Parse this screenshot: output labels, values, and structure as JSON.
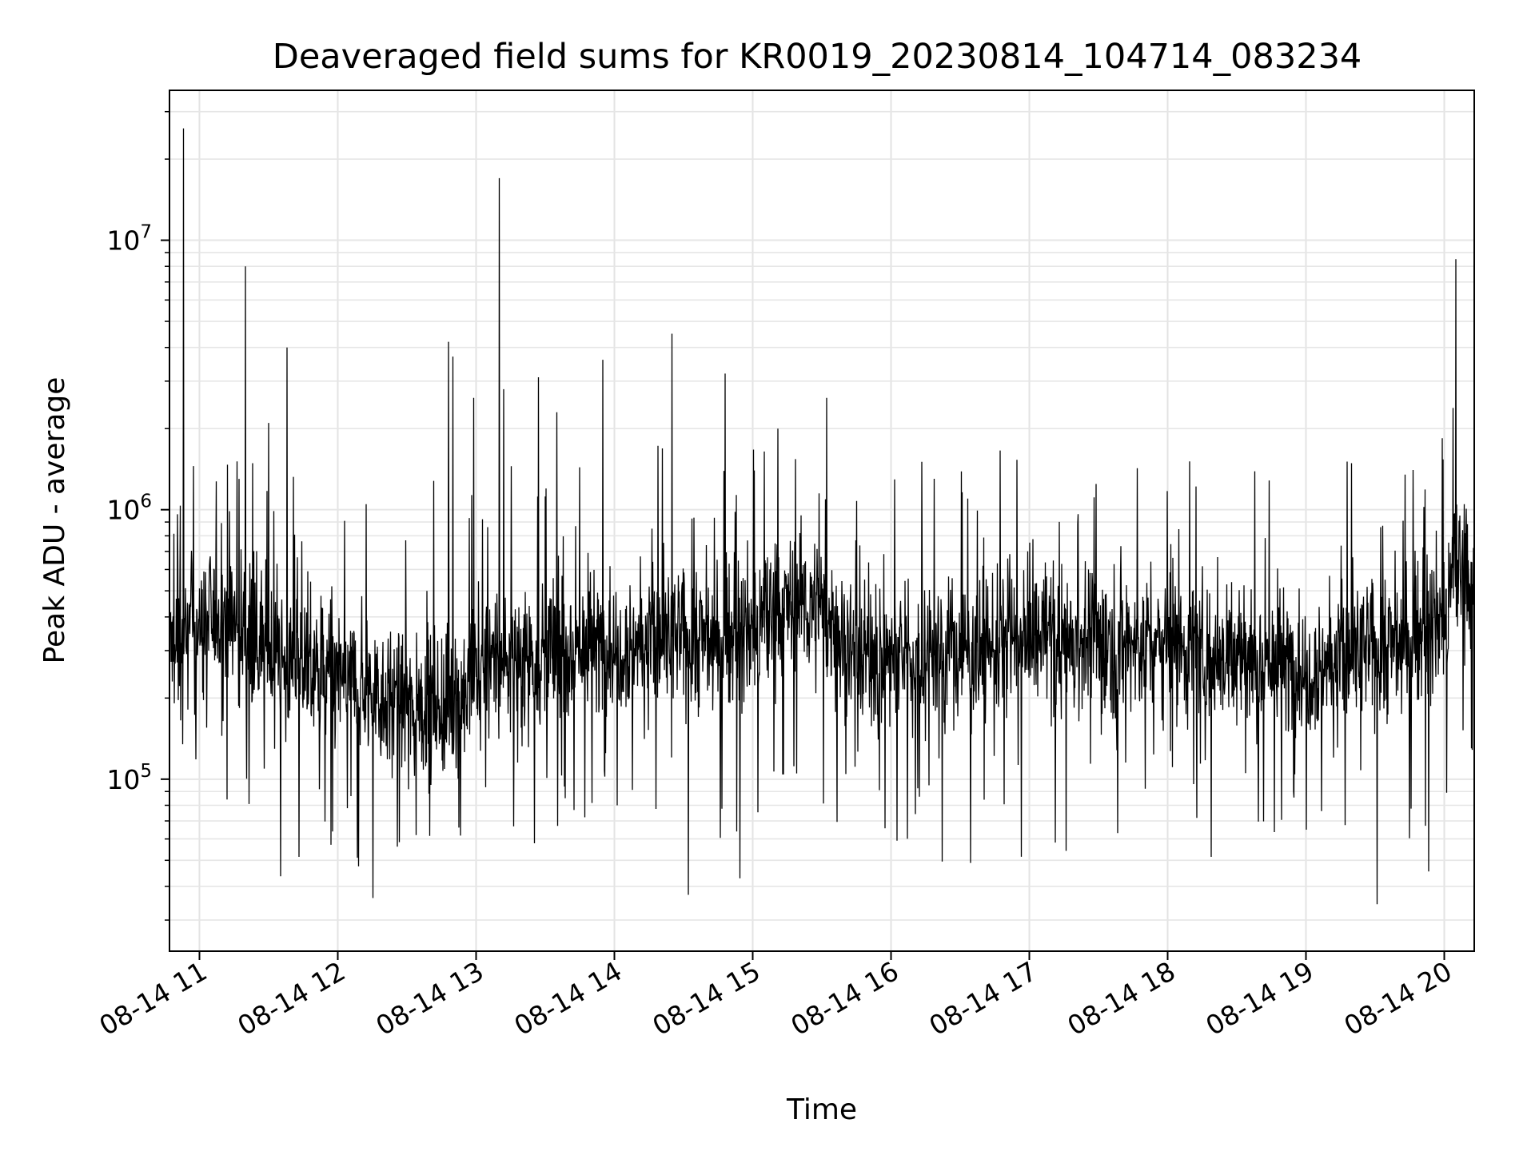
{
  "chart_data": {
    "type": "line",
    "title": "Deaveraged field sums for KR0019_20230814_104714_083234",
    "xlabel": "Time",
    "ylabel": "Peak ADU - average",
    "yscale": "log",
    "xlim": [
      "2023-08-14 10:47",
      "2023-08-14 20:13"
    ],
    "ylim": [
      23000,
      36000000
    ],
    "grid": true,
    "line_color": "#000000",
    "x_ticks": [
      {
        "value": "2023-08-14 11:00",
        "label": "08-14 11"
      },
      {
        "value": "2023-08-14 12:00",
        "label": "08-14 12"
      },
      {
        "value": "2023-08-14 13:00",
        "label": "08-14 13"
      },
      {
        "value": "2023-08-14 14:00",
        "label": "08-14 14"
      },
      {
        "value": "2023-08-14 15:00",
        "label": "08-14 15"
      },
      {
        "value": "2023-08-14 16:00",
        "label": "08-14 16"
      },
      {
        "value": "2023-08-14 17:00",
        "label": "08-14 17"
      },
      {
        "value": "2023-08-14 18:00",
        "label": "08-14 18"
      },
      {
        "value": "2023-08-14 19:00",
        "label": "08-14 19"
      },
      {
        "value": "2023-08-14 20:00",
        "label": "08-14 20"
      }
    ],
    "y_ticks": [
      {
        "value": 100000,
        "base": "10",
        "exp": "5"
      },
      {
        "value": 1000000,
        "base": "10",
        "exp": "6"
      },
      {
        "value": 10000000,
        "base": "10",
        "exp": "7"
      }
    ],
    "baseline": [
      {
        "t": "2023-08-14 10:47",
        "v": 300000
      },
      {
        "t": "2023-08-14 11:10",
        "v": 420000
      },
      {
        "t": "2023-08-14 11:35",
        "v": 280000
      },
      {
        "t": "2023-08-14 12:00",
        "v": 240000
      },
      {
        "t": "2023-08-14 12:30",
        "v": 190000
      },
      {
        "t": "2023-08-14 12:50",
        "v": 190000
      },
      {
        "t": "2023-08-14 13:10",
        "v": 280000
      },
      {
        "t": "2023-08-14 14:00",
        "v": 320000
      },
      {
        "t": "2023-08-14 15:00",
        "v": 340000
      },
      {
        "t": "2023-08-14 15:20",
        "v": 480000
      },
      {
        "t": "2023-08-14 15:45",
        "v": 300000
      },
      {
        "t": "2023-08-14 16:00",
        "v": 280000
      },
      {
        "t": "2023-08-14 17:00",
        "v": 330000
      },
      {
        "t": "2023-08-14 18:00",
        "v": 320000
      },
      {
        "t": "2023-08-14 19:00",
        "v": 260000
      },
      {
        "t": "2023-08-14 19:40",
        "v": 320000
      },
      {
        "t": "2023-08-14 20:00",
        "v": 380000
      },
      {
        "t": "2023-08-14 20:05",
        "v": 600000
      },
      {
        "t": "2023-08-14 20:13",
        "v": 520000
      }
    ],
    "spikes": [
      {
        "t": "2023-08-14 10:53",
        "v": 26000000
      },
      {
        "t": "2023-08-14 11:20",
        "v": 8000000
      },
      {
        "t": "2023-08-14 11:38",
        "v": 4000000
      },
      {
        "t": "2023-08-14 11:30",
        "v": 2100000
      },
      {
        "t": "2023-08-14 12:48",
        "v": 4200000
      },
      {
        "t": "2023-08-14 12:50",
        "v": 3700000
      },
      {
        "t": "2023-08-14 12:59",
        "v": 2600000
      },
      {
        "t": "2023-08-14 13:10",
        "v": 17000000
      },
      {
        "t": "2023-08-14 13:12",
        "v": 2800000
      },
      {
        "t": "2023-08-14 13:27",
        "v": 3100000
      },
      {
        "t": "2023-08-14 13:35",
        "v": 2300000
      },
      {
        "t": "2023-08-14 13:55",
        "v": 3600000
      },
      {
        "t": "2023-08-14 14:25",
        "v": 4500000
      },
      {
        "t": "2023-08-14 14:48",
        "v": 3200000
      },
      {
        "t": "2023-08-14 15:11",
        "v": 2000000
      },
      {
        "t": "2023-08-14 15:32",
        "v": 2600000
      },
      {
        "t": "2023-08-14 19:43",
        "v": 1350000
      },
      {
        "t": "2023-08-14 20:05",
        "v": 8500000
      }
    ]
  }
}
